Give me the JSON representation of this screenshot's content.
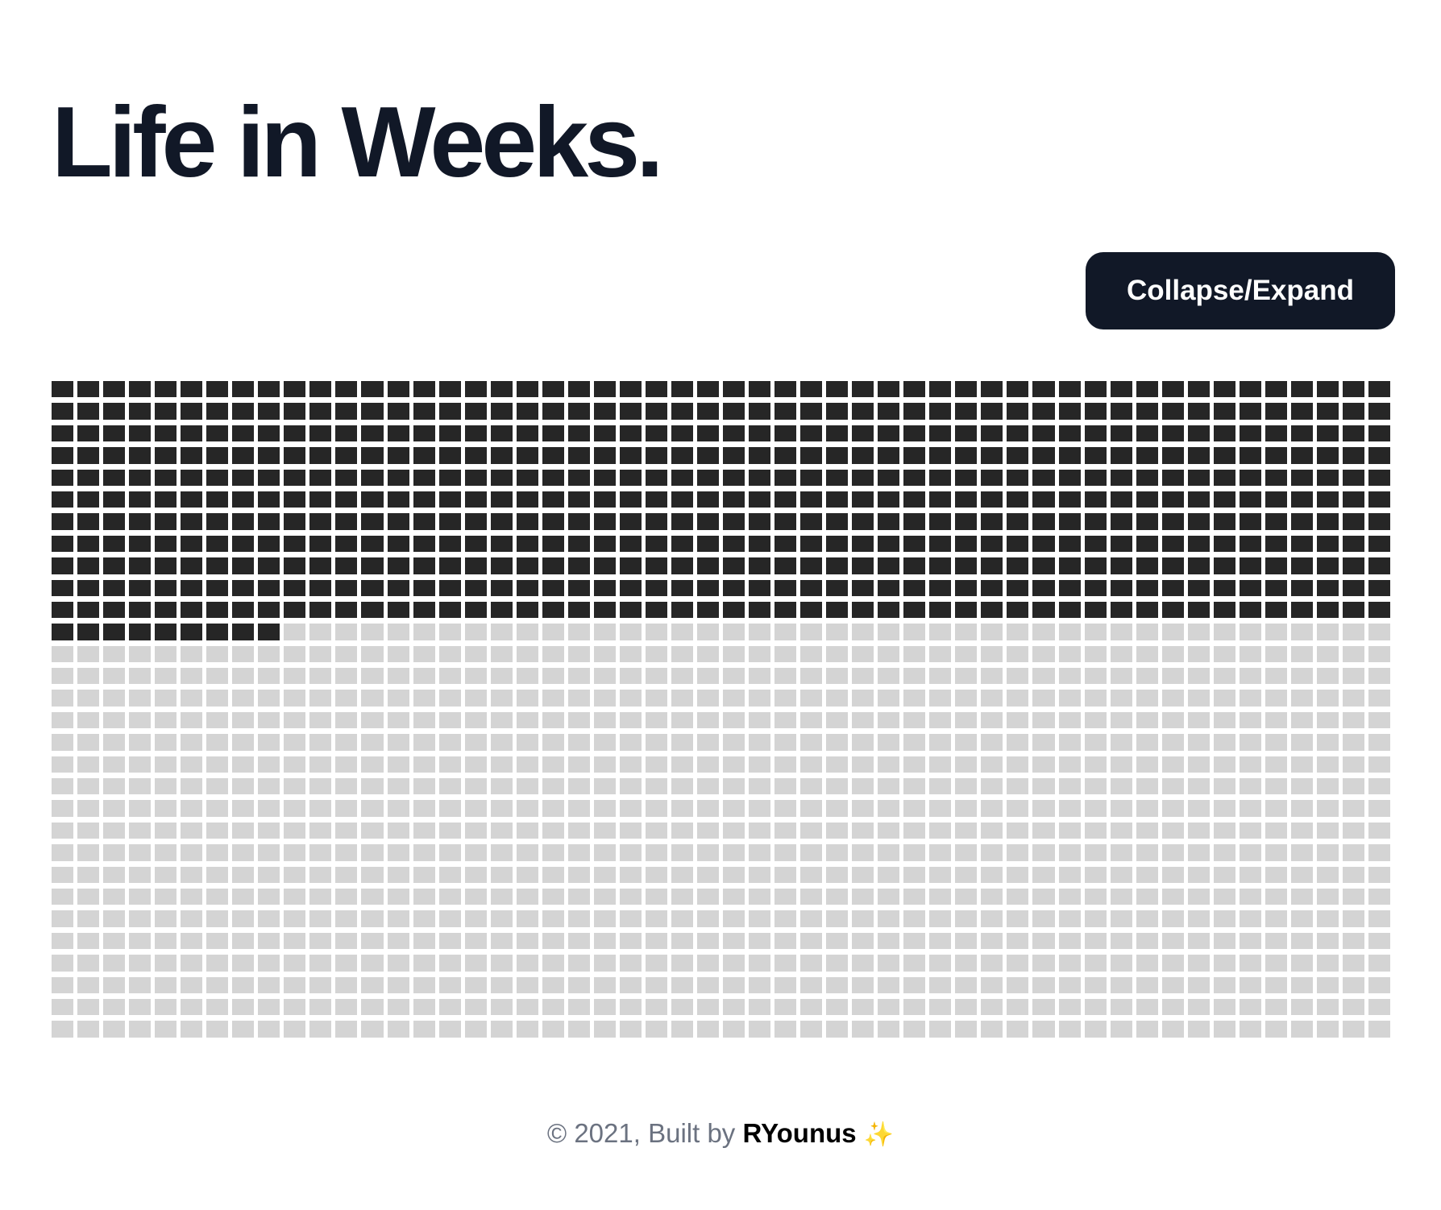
{
  "title": "Life in Weeks.",
  "toggle_button_label": "Collapse/Expand",
  "weeks": {
    "columns_per_row": 52,
    "total_rows": 30,
    "lived_weeks": 581,
    "lived_color": "#262626",
    "remaining_color": "#d4d4d4"
  },
  "footer": {
    "prefix": "© 2021, Built by ",
    "author": "RYounus",
    "emoji": "✨",
    "emoji_icon": "sparkles-icon"
  },
  "colors": {
    "heading": "#111827",
    "button_bg": "#111827",
    "button_text": "#ffffff",
    "footer_text": "#6b7280"
  }
}
